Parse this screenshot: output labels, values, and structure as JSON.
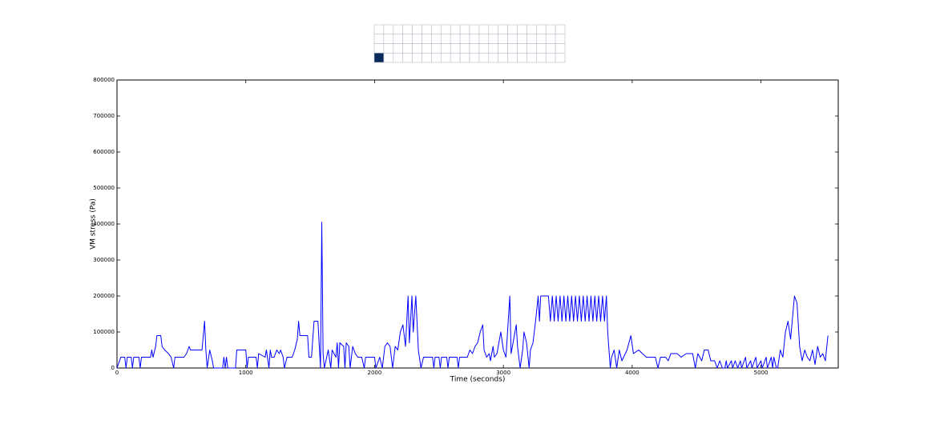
{
  "chart_data": {
    "type": "line",
    "xlabel": "Time (seconds)",
    "ylabel": "VM stress (Pa)",
    "color": "#0000ff",
    "xlim": [
      0,
      5600
    ],
    "xticks": [
      0,
      1000,
      2000,
      3000,
      4000,
      5000
    ],
    "ylim": [
      0,
      800000
    ],
    "yticks": [
      0,
      100000,
      200000,
      300000,
      400000,
      500000,
      600000,
      700000,
      800000
    ],
    "x": [
      0,
      30,
      60,
      70,
      80,
      110,
      120,
      130,
      170,
      180,
      190,
      260,
      270,
      280,
      300,
      310,
      340,
      350,
      370,
      400,
      420,
      440,
      450,
      520,
      540,
      560,
      570,
      640,
      660,
      680,
      690,
      700,
      720,
      740,
      750,
      820,
      830,
      840,
      850,
      860,
      920,
      930,
      1000,
      1010,
      1020,
      1080,
      1090,
      1100,
      1150,
      1160,
      1180,
      1190,
      1200,
      1220,
      1240,
      1260,
      1270,
      1290,
      1300,
      1320,
      1360,
      1380,
      1400,
      1410,
      1420,
      1480,
      1490,
      1510,
      1530,
      1560,
      1580,
      1590,
      1600,
      1610,
      1640,
      1660,
      1670,
      1700,
      1710,
      1720,
      1730,
      1760,
      1770,
      1780,
      1800,
      1810,
      1830,
      1850,
      1870,
      1900,
      1920,
      1930,
      2000,
      2010,
      2040,
      2060,
      2080,
      2100,
      2120,
      2140,
      2160,
      2180,
      2200,
      2220,
      2240,
      2260,
      2270,
      2290,
      2300,
      2320,
      2340,
      2360,
      2380,
      2450,
      2460,
      2470,
      2500,
      2510,
      2520,
      2560,
      2570,
      2580,
      2640,
      2650,
      2660,
      2720,
      2740,
      2760,
      2780,
      2800,
      2820,
      2840,
      2850,
      2870,
      2890,
      2900,
      2920,
      2930,
      2950,
      2960,
      2980,
      3000,
      3020,
      3050,
      3060,
      3080,
      3100,
      3110,
      3130,
      3150,
      3160,
      3180,
      3200,
      3210,
      3230,
      3250,
      3270,
      3280,
      3290,
      3350,
      3365,
      3380,
      3395,
      3410,
      3425,
      3440,
      3455,
      3470,
      3485,
      3500,
      3515,
      3530,
      3545,
      3560,
      3575,
      3590,
      3605,
      3620,
      3635,
      3650,
      3665,
      3680,
      3695,
      3710,
      3725,
      3740,
      3755,
      3770,
      3785,
      3800,
      3810,
      3830,
      3840,
      3860,
      3880,
      3900,
      3920,
      3960,
      3990,
      4010,
      4050,
      4080,
      4110,
      4180,
      4200,
      4220,
      4260,
      4280,
      4300,
      4350,
      4380,
      4420,
      4470,
      4490,
      4510,
      4540,
      4560,
      4590,
      4610,
      4640,
      4660,
      4680,
      4700,
      4720,
      4730,
      4740,
      4770,
      4780,
      4800,
      4820,
      4840,
      4850,
      4880,
      4890,
      4920,
      4930,
      4960,
      4970,
      5000,
      5010,
      5040,
      5050,
      5080,
      5090,
      5100,
      5120,
      5130,
      5150,
      5170,
      5190,
      5210,
      5230,
      5260,
      5280,
      5300,
      5320,
      5340,
      5360,
      5380,
      5400,
      5420,
      5440,
      5460,
      5480,
      5500,
      5520
    ],
    "values": [
      0,
      30000,
      30000,
      0,
      30000,
      30000,
      0,
      30000,
      30000,
      0,
      30000,
      30000,
      50000,
      30000,
      60000,
      90000,
      90000,
      60000,
      50000,
      40000,
      30000,
      0,
      30000,
      30000,
      40000,
      60000,
      50000,
      50000,
      50000,
      130000,
      50000,
      0,
      50000,
      20000,
      0,
      0,
      30000,
      0,
      30000,
      0,
      0,
      50000,
      50000,
      0,
      30000,
      30000,
      0,
      40000,
      30000,
      50000,
      0,
      50000,
      30000,
      30000,
      50000,
      40000,
      50000,
      30000,
      0,
      30000,
      30000,
      50000,
      80000,
      130000,
      90000,
      90000,
      30000,
      30000,
      130000,
      130000,
      0,
      405000,
      40000,
      0,
      50000,
      0,
      50000,
      30000,
      70000,
      0,
      70000,
      60000,
      0,
      70000,
      60000,
      0,
      60000,
      40000,
      30000,
      30000,
      0,
      30000,
      30000,
      0,
      30000,
      0,
      60000,
      70000,
      60000,
      0,
      60000,
      50000,
      100000,
      120000,
      60000,
      200000,
      70000,
      200000,
      100000,
      200000,
      50000,
      0,
      30000,
      30000,
      0,
      30000,
      30000,
      0,
      30000,
      30000,
      0,
      30000,
      30000,
      0,
      30000,
      30000,
      50000,
      40000,
      60000,
      70000,
      100000,
      120000,
      50000,
      30000,
      40000,
      20000,
      60000,
      30000,
      40000,
      60000,
      100000,
      50000,
      30000,
      200000,
      40000,
      80000,
      120000,
      60000,
      0,
      50000,
      100000,
      70000,
      0,
      50000,
      70000,
      130000,
      200000,
      130000,
      200000,
      200000,
      130000,
      200000,
      130000,
      200000,
      130000,
      200000,
      130000,
      200000,
      130000,
      200000,
      130000,
      200000,
      130000,
      200000,
      130000,
      200000,
      130000,
      200000,
      130000,
      200000,
      130000,
      200000,
      130000,
      200000,
      130000,
      200000,
      130000,
      200000,
      130000,
      200000,
      100000,
      0,
      30000,
      50000,
      0,
      50000,
      20000,
      50000,
      90000,
      40000,
      50000,
      40000,
      30000,
      30000,
      0,
      30000,
      30000,
      20000,
      40000,
      40000,
      30000,
      40000,
      40000,
      0,
      40000,
      20000,
      50000,
      50000,
      20000,
      20000,
      0,
      20000,
      0,
      0,
      20000,
      0,
      20000,
      0,
      20000,
      0,
      20000,
      0,
      30000,
      0,
      20000,
      0,
      30000,
      0,
      20000,
      0,
      30000,
      0,
      30000,
      0,
      30000,
      0,
      0,
      50000,
      30000,
      100000,
      130000,
      80000,
      200000,
      180000,
      60000,
      20000,
      50000,
      30000,
      20000,
      50000,
      10000,
      60000,
      30000,
      40000,
      20000,
      90000
    ]
  }
}
